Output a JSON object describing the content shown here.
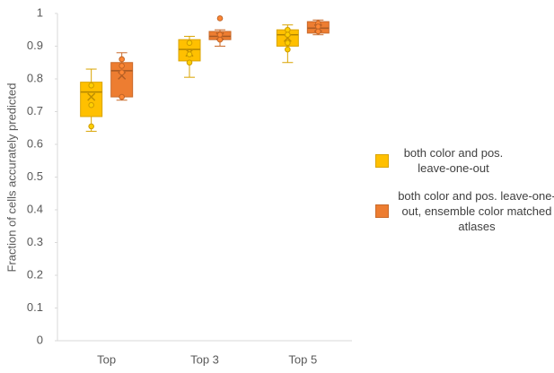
{
  "chart_data": {
    "type": "box",
    "y_label": "Fraction of cells accurately predicted",
    "categories": [
      "Top",
      "Top 3",
      "Top 5"
    ],
    "ylim": [
      0,
      1
    ],
    "yticks": [
      0,
      0.1,
      0.2,
      0.3,
      0.4,
      0.5,
      0.6,
      0.7,
      0.8,
      0.9,
      1
    ],
    "series": [
      {
        "name": "both color and pos. leave-one-out",
        "color": "#FFC000",
        "boxes": [
          {
            "whislo": 0.64,
            "q1": 0.685,
            "med": 0.76,
            "q3": 0.79,
            "whishi": 0.83,
            "mean": 0.745,
            "points": [
              0.78,
              0.72,
              0.655
            ]
          },
          {
            "whislo": 0.805,
            "q1": 0.855,
            "med": 0.89,
            "q3": 0.92,
            "whishi": 0.93,
            "mean": 0.88,
            "points": [
              0.91,
              0.875,
              0.85
            ]
          },
          {
            "whislo": 0.85,
            "q1": 0.9,
            "med": 0.935,
            "q3": 0.95,
            "whishi": 0.965,
            "mean": 0.925,
            "points": [
              0.95,
              0.935,
              0.91,
              0.89
            ]
          }
        ]
      },
      {
        "name": "both color and pos. leave-one-out, ensemble color matched atlases",
        "color": "#ED7D31",
        "boxes": [
          {
            "whislo": 0.735,
            "q1": 0.745,
            "med": 0.825,
            "q3": 0.85,
            "whishi": 0.88,
            "mean": 0.81,
            "points": [
              0.86,
              0.84,
              0.82,
              0.745
            ]
          },
          {
            "whislo": 0.9,
            "q1": 0.92,
            "med": 0.93,
            "q3": 0.945,
            "whishi": 0.95,
            "mean": 0.93,
            "points": [
              0.985,
              0.935,
              0.92
            ]
          },
          {
            "whislo": 0.935,
            "q1": 0.94,
            "med": 0.955,
            "q3": 0.975,
            "whishi": 0.98,
            "mean": 0.955,
            "points": [
              0.97,
              0.96,
              0.945
            ]
          }
        ]
      }
    ],
    "legend": "right"
  }
}
